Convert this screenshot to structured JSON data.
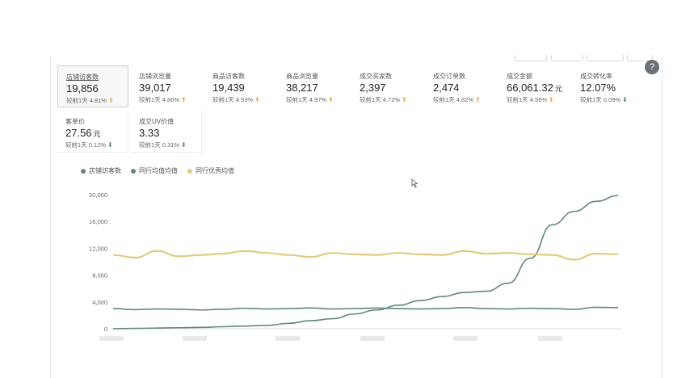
{
  "metrics": [
    {
      "label": "店铺访客数",
      "value": "19,856",
      "unit": "",
      "compare_label": "较前1天",
      "change": "4.81%",
      "trend": "up",
      "active": true
    },
    {
      "label": "店铺浏览量",
      "value": "39,017",
      "unit": "",
      "compare_label": "较前1天",
      "change": "4.86%",
      "trend": "up"
    },
    {
      "label": "商品访客数",
      "value": "19,439",
      "unit": "",
      "compare_label": "较前1天",
      "change": "4.93%",
      "trend": "up"
    },
    {
      "label": "商品浏览量",
      "value": "38,217",
      "unit": "",
      "compare_label": "较前1天",
      "change": "4.97%",
      "trend": "up"
    },
    {
      "label": "成交买家数",
      "value": "2,397",
      "unit": "",
      "compare_label": "较前1天",
      "change": "4.72%",
      "trend": "up"
    },
    {
      "label": "成交订单数",
      "value": "2,474",
      "unit": "",
      "compare_label": "较前1天",
      "change": "4.82%",
      "trend": "up"
    },
    {
      "label": "成交金额",
      "value": "66,061.32",
      "unit": "元",
      "compare_label": "较前1天",
      "change": "4.56%",
      "trend": "up"
    },
    {
      "label": "成交转化率",
      "value": "12.07%",
      "unit": "",
      "compare_label": "较前1天",
      "change": "0.09%",
      "trend": "down"
    },
    {
      "label": "客单价",
      "value": "27.56",
      "unit": "元",
      "compare_label": "较前1天",
      "change": "0.12%",
      "trend": "down"
    },
    {
      "label": "成交UV价值",
      "value": "3.33",
      "unit": "",
      "compare_label": "较前1天",
      "change": "0.31%",
      "trend": "down"
    }
  ],
  "icons": {
    "cursor": "pointer-cursor-icon",
    "help": "circle-question-icon"
  },
  "chart_data": {
    "type": "line",
    "legend": [
      "店铺访客数",
      "同行均值均值",
      "同行优秀均值"
    ],
    "legend_position": "top-left",
    "colors": [
      "#5e8a7b",
      "#5e8a7b",
      "#e3cc78"
    ],
    "y_ticks": [
      "20,000",
      "16,000",
      "12,000",
      "8,000",
      "4,000",
      "0"
    ],
    "ylim": [
      0,
      20000
    ],
    "grid": false,
    "n_points": 24,
    "series": [
      {
        "name": "店铺访客数",
        "values": [
          0,
          50,
          100,
          150,
          200,
          300,
          400,
          500,
          800,
          1200,
          1500,
          2200,
          2800,
          3500,
          4200,
          4800,
          5400,
          5600,
          6800,
          10500,
          15500,
          17500,
          19000,
          19856
        ]
      },
      {
        "name": "同行均值均值",
        "values": [
          3000,
          2850,
          2950,
          2900,
          2800,
          2900,
          3050,
          2950,
          3000,
          3100,
          2950,
          3000,
          3100,
          3000,
          2950,
          3000,
          3150,
          3000,
          2950,
          3050,
          3000,
          2900,
          3200,
          3150
        ]
      },
      {
        "name": "同行优秀均值",
        "values": [
          11000,
          10600,
          11600,
          10800,
          11000,
          11200,
          11600,
          11300,
          11000,
          10700,
          11300,
          11100,
          11000,
          11300,
          11100,
          11000,
          11600,
          11200,
          11300,
          11100,
          11000,
          10300,
          11200,
          11100
        ]
      }
    ]
  }
}
